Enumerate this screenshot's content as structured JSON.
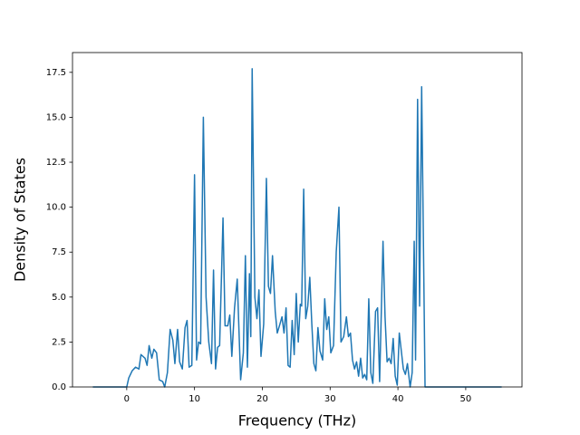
{
  "chart_data": {
    "type": "line",
    "x_label": "Frequency (THz)",
    "y_label": "Density of States",
    "color": "#1f77b4",
    "x": [
      -5,
      0,
      0.3,
      0.8,
      1.3,
      1.8,
      2.1,
      2.7,
      3.0,
      3.3,
      3.7,
      4.0,
      4.4,
      4.8,
      5.3,
      5.6,
      6.0,
      6.4,
      6.8,
      7.1,
      7.5,
      7.8,
      8.2,
      8.6,
      8.9,
      9.2,
      9.6,
      10.0,
      10.3,
      10.6,
      10.9,
      11.3,
      11.7,
      12.1,
      12.5,
      12.8,
      13.1,
      13.4,
      13.7,
      14.2,
      14.5,
      14.9,
      15.2,
      15.5,
      15.9,
      16.3,
      16.8,
      17.2,
      17.5,
      17.8,
      18.1,
      18.3,
      18.5,
      18.9,
      19.2,
      19.5,
      19.8,
      20.2,
      20.6,
      20.9,
      21.2,
      21.5,
      21.9,
      22.2,
      22.6,
      22.9,
      23.2,
      23.5,
      23.8,
      24.1,
      24.4,
      24.7,
      25.0,
      25.3,
      25.6,
      25.8,
      26.1,
      26.4,
      26.7,
      27.0,
      27.3,
      27.6,
      27.9,
      28.2,
      28.5,
      28.9,
      29.2,
      29.5,
      29.8,
      30.1,
      30.5,
      30.9,
      31.3,
      31.6,
      32.0,
      32.4,
      32.7,
      33.0,
      33.3,
      33.6,
      33.9,
      34.2,
      34.5,
      34.8,
      35.1,
      35.4,
      35.7,
      36.0,
      36.3,
      36.7,
      37.0,
      37.3,
      37.8,
      38.1,
      38.4,
      38.7,
      39.0,
      39.3,
      39.6,
      39.9,
      40.2,
      40.5,
      40.8,
      41.1,
      41.4,
      41.8,
      42.1,
      42.4,
      42.6,
      42.9,
      43.2,
      43.5,
      44.0,
      55.3
    ],
    "values": [
      0,
      0,
      0.5,
      0.9,
      1.1,
      1.0,
      1.8,
      1.6,
      1.2,
      2.3,
      1.6,
      2.1,
      1.9,
      0.4,
      0.3,
      0,
      0.8,
      3.2,
      2.6,
      1.3,
      3.2,
      1.4,
      1.0,
      3.3,
      3.7,
      1.1,
      1.2,
      11.8,
      1.5,
      2.5,
      2.4,
      15.0,
      5.0,
      2.5,
      1.3,
      6.5,
      1.0,
      2.2,
      2.3,
      9.4,
      3.4,
      3.4,
      4.0,
      1.7,
      4.4,
      6.0,
      0.4,
      1.9,
      7.3,
      1.1,
      6.3,
      2.8,
      17.7,
      5.0,
      3.8,
      5.4,
      1.7,
      3.5,
      11.6,
      5.6,
      5.2,
      7.3,
      4.2,
      3.0,
      3.5,
      3.9,
      3.0,
      4.4,
      1.2,
      1.1,
      3.7,
      1.8,
      5.2,
      2.5,
      4.6,
      4.5,
      11.0,
      3.8,
      4.5,
      6.1,
      3.5,
      1.3,
      0.9,
      3.3,
      2.0,
      1.5,
      4.9,
      3.2,
      3.9,
      1.9,
      2.3,
      7.5,
      10.0,
      2.5,
      2.8,
      3.9,
      2.8,
      3.0,
      1.5,
      1.0,
      1.4,
      0.6,
      1.6,
      0.5,
      0.7,
      0.4,
      4.9,
      0.8,
      0.2,
      4.2,
      4.4,
      0.3,
      8.1,
      3.9,
      1.4,
      1.6,
      1.3,
      2.7,
      0.6,
      0.1,
      3.0,
      2.0,
      1.0,
      0.7,
      1.3,
      0,
      0.8,
      8.1,
      1.5,
      16.0,
      4.5,
      16.7,
      0,
      0
    ],
    "xlim": [
      -8.0,
      58.3
    ],
    "xticks": [
      0,
      10,
      20,
      30,
      40,
      50
    ],
    "ylim": [
      0,
      18.6
    ],
    "yticks": [
      {
        "value": 0,
        "label": "0.0"
      },
      2.5,
      {
        "value": 5,
        "label": "5.0"
      },
      7.5,
      {
        "value": 10,
        "label": "10.0"
      },
      12.5,
      {
        "value": 15,
        "label": "15.0"
      },
      17.5
    ],
    "grid": false
  }
}
